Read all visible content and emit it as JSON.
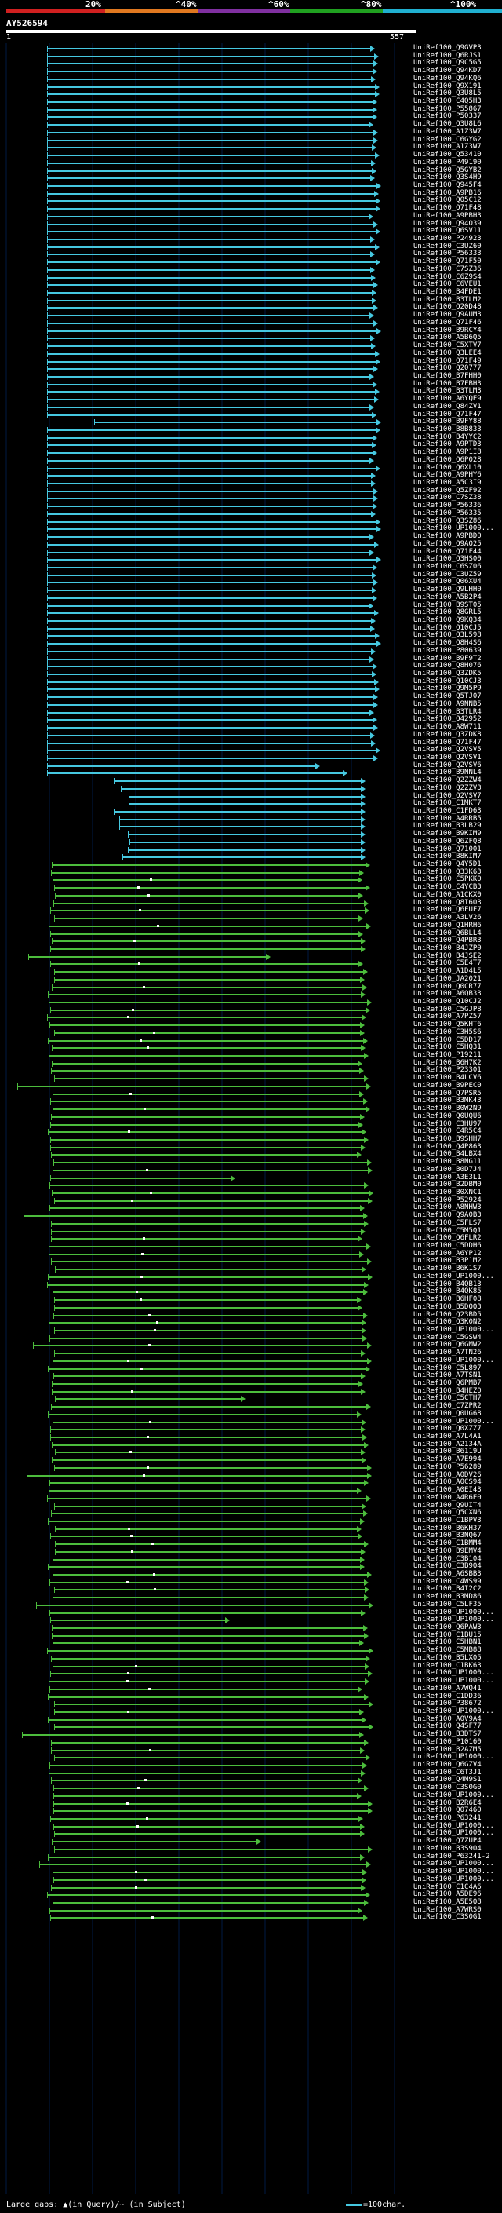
{
  "scale": {
    "labels": [
      "20%",
      "^40%",
      "^60%",
      "^80%",
      "^100%"
    ],
    "colors": [
      "#d02020",
      "#e07820",
      "#8030a0",
      "#20a020",
      "#20b0d0"
    ]
  },
  "query": {
    "id": "AY526594",
    "start": "1",
    "end": "557"
  },
  "colors": {
    "cyan": "#46c8e0",
    "green": "#4cbc3c",
    "grid": "#001a44"
  },
  "hits": [
    "UniRef100_Q9GVP3",
    "UniRef100_Q6RJS1",
    "UniRef100_Q9C5G5",
    "UniRef100_Q94KD7",
    "UniRef100_Q94KQ6",
    "UniRef100_Q9X191",
    "UniRef100_Q3U8L5",
    "UniRef100_C4Q5H3",
    "UniRef100_P55867",
    "UniRef100_P50337",
    "UniRef100_Q3U8L6",
    "UniRef100_A1Z3W7",
    "UniRef100_C6GYG2",
    "UniRef100_A1Z3W7",
    "UniRef100_Q53410",
    "UniRef100_P49190",
    "UniRef100_Q5GYB2",
    "UniRef100_Q3S4H9",
    "UniRef100_Q945F4",
    "UniRef100_A9PB16",
    "UniRef100_Q05C12",
    "UniRef100_Q71F48",
    "UniRef100_A9PBH3",
    "UniRef100_Q94O39",
    "UniRef100_Q6SV11",
    "UniRef100_P24923",
    "UniRef100_C3UZ60",
    "UniRef100_P56333",
    "UniRef100_Q71F50",
    "UniRef100_C7SZ36",
    "UniRef100_C6Z9S4",
    "UniRef100_C6VEU1",
    "UniRef100_B4FDE1",
    "UniRef100_B3TLM2",
    "UniRef100_Q20D48",
    "UniRef100_Q9AUM3",
    "UniRef100_Q71F46",
    "UniRef100_B9RCY4",
    "UniRef100_A5B6Q5",
    "UniRef100_C5XTV7",
    "UniRef100_Q3LEE4",
    "UniRef100_Q71F49",
    "UniRef100_Q20777",
    "UniRef100_B7FHH0",
    "UniRef100_B7FBH3",
    "UniRef100_B3TLM3",
    "UniRef100_A6YQE9",
    "UniRef100_Q84ZV1",
    "UniRef100_Q71F47",
    "UniRef100_B9FY88",
    "UniRef100_B8B833",
    "UniRef100_B4YYC2",
    "UniRef100_A9PTD3",
    "UniRef100_A9P1I8",
    "UniRef100_Q6P028",
    "UniRef100_Q6XL10",
    "UniRef100_A9PHY6",
    "UniRef100_A5C3I9",
    "UniRef100_Q5ZF92",
    "UniRef100_C7SZ38",
    "UniRef100_P56336",
    "UniRef100_P56335",
    "UniRef100_Q3SZ86",
    "UniRef100_UP1000...",
    "UniRef100_A9PBD0",
    "UniRef100_Q9AQ25",
    "UniRef100_Q71F44",
    "UniRef100_Q3HS00",
    "UniRef100_C6SZ06",
    "UniRef100_C3UZ59",
    "UniRef100_Q06XU4",
    "UniRef100_Q9LHH0",
    "UniRef100_A5B2P4",
    "UniRef100_B9ST05",
    "UniRef100_Q8GRL5",
    "UniRef100_Q9KQ34",
    "UniRef100_Q10CJ5",
    "UniRef100_Q3L598",
    "UniRef100_Q8H4S6",
    "UniRef100_P80639",
    "UniRef100_B9F9T2",
    "UniRef100_Q8H076",
    "UniRef100_Q3ZDK5",
    "UniRef100_Q10CJ3",
    "UniRef100_Q9M5P9",
    "UniRef100_Q5TJ07",
    "UniRef100_A9NNB5",
    "UniRef100_B3TLR4",
    "UniRef100_Q42952",
    "UniRef100_A8W711",
    "UniRef100_Q3ZDK8",
    "UniRef100_Q71F47",
    "UniRef100_Q2VSV5",
    "UniRef100_Q2VSV1",
    "UniRef100_Q2VSV6",
    "UniRef100_B9NNL4",
    "UniRef100_Q2ZZW4",
    "UniRef100_Q2ZZV3",
    "UniRef100_Q2VSV7",
    "UniRef100_C1MKT7",
    "UniRef100_C1FD63",
    "UniRef100_A4RRB5",
    "UniRef100_B3LB29",
    "UniRef100_B9KIM9",
    "UniRef100_Q6ZFQ8",
    "UniRef100_Q71001",
    "UniRef100_B8KIM7",
    "UniRef100_Q4Y5D1",
    "UniRef100_Q33K63",
    "UniRef100_C5PKK0",
    "UniRef100_C4YCB3",
    "UniRef100_A1CKX0",
    "UniRef100_Q8I6O3",
    "UniRef100_Q6FUF7",
    "UniRef100_A3LV26",
    "UniRef100_Q1HRH6",
    "UniRef100_Q6BLL4",
    "UniRef100_Q4PBR3",
    "UniRef100_B4JZP0",
    "UniRef100_B4JSE2",
    "UniRef100_C5E4T7",
    "UniRef100_A1D4L5",
    "UniRef100_JA2021",
    "UniRef100_Q0CR77",
    "UniRef100_A6QB33",
    "UniRef100_Q10CJ2",
    "UniRef100_C5GJP8",
    "UniRef100_A7PZ57",
    "UniRef100_Q5KHT6",
    "UniRef100_C3H5S6",
    "UniRef100_C5DD17",
    "UniRef100_C5HQ31",
    "UniRef100_P19211",
    "UniRef100_B6H7K2",
    "UniRef100_P23301",
    "UniRef100_B4LCV6",
    "UniRef100_B9PEC0",
    "UniRef100_Q7PSR5",
    "UniRef100_B3MK43",
    "UniRef100_B0W2N9",
    "UniRef100_Q0UQU6",
    "UniRef100_C3HU97",
    "UniRef100_C4R5C4",
    "UniRef100_B9SHH7",
    "UniRef100_Q4P863",
    "UniRef100_B4LBX4",
    "UniRef100_B8NG11",
    "UniRef100_B0D7J4",
    "UniRef100_A3E3L1",
    "UniRef100_B2DBM0",
    "UniRef100_B0XNC1",
    "UniRef100_P52924",
    "UniRef100_A8NHW3",
    "UniRef100_Q9A0B3",
    "UniRef100_C5FLS7",
    "UniRef100_C5M5Q1",
    "UniRef100_Q6FLR2",
    "UniRef100_C5DDH6",
    "UniRef100_A6YP12",
    "UniRef100_B3P1M2",
    "UniRef100_B6K1S7",
    "UniRef100_UP1000...",
    "UniRef100_B4QB13",
    "UniRef100_B4QK85",
    "UniRef100_B6HF08",
    "UniRef100_B5DQQ3",
    "UniRef100_Q23BD5",
    "UniRef100_Q3K0N2",
    "UniRef100_UP1000...",
    "UniRef100_C5GSW4",
    "UniRef100_Q6GMW2",
    "UniRef100_A7TN26",
    "UniRef100_UP1000...",
    "UniRef100_C5L897",
    "UniRef100_A7TSN1",
    "UniRef100_Q6PMB7",
    "UniRef100_B4HEZ0",
    "UniRef100_C5CTH7",
    "UniRef100_C7ZPR2",
    "UniRef100_Q0UG68",
    "UniRef100_UP1000...",
    "UniRef100_Q0XZZ7",
    "UniRef100_A7L4A1",
    "UniRef100_A2134A",
    "UniRef100_B6119U",
    "UniRef100_A7E994",
    "UniRef100_P56289",
    "UniRef100_A0DV26",
    "UniRef100_A0CS94",
    "UniRef100_A0EI43",
    "UniRef100_A4R6E0",
    "UniRef100_Q9UIT4",
    "UniRef100_Q5CXN6",
    "UniRef100_C1BPV3",
    "UniRef100_B6KH37",
    "UniRef100_B3NQ67",
    "UniRef100_C1BMM4",
    "UniRef100_B9EMV4",
    "UniRef100_C3B104",
    "UniRef100_C3B9Q4",
    "UniRef100_A6SBB3",
    "UniRef100_C4WS99",
    "UniRef100_B4I2C2",
    "UniRef100_B3MD86",
    "UniRef100_C5LF35",
    "UniRef100_UP1000...",
    "UniRef100_UP1000...",
    "UniRef100_Q6PAW3",
    "UniRef100_C1BU15",
    "UniRef100_C5HBN1",
    "UniRef100_C5MB88",
    "UniRef100_B5LX05",
    "UniRef100_C1BK63",
    "UniRef100_UP1000...",
    "UniRef100_UP1000...",
    "UniRef100_A7WQ41",
    "UniRef100_C1DD36",
    "UniRef100_P38672",
    "UniRef100_UP1000...",
    "UniRef100_A0V9A4",
    "UniRef100_Q4SF77",
    "UniRef100_B3DTS7",
    "UniRef100_P10160",
    "UniRef100_B2AZM5",
    "UniRef100_UP1000...",
    "UniRef100_Q6GZV4",
    "UniRef100_C6T3J1",
    "UniRef100_Q4M9S1",
    "UniRef100_C3S0G0",
    "UniRef100_UP1000...",
    "UniRef100_B2R6E4",
    "UniRef100_Q07460",
    "UniRef100_P63241",
    "UniRef100_UP1000...",
    "UniRef100_UP1000...",
    "UniRef100_Q7ZUP4",
    "UniRef100_B3S9O4",
    "UniRef100_P63241-2",
    "UniRef100_UP1000...",
    "UniRef100_UP1000...",
    "UniRef100_UP1000...",
    "UniRef100_C1C4A6",
    "UniRef100_A5DE96",
    "UniRef100_A5E5Q8",
    "UniRef100_A7WRS0",
    "UniRef100_C3S0G1"
  ],
  "footer": {
    "left": "Large gaps: ▲(in Query)/~ (in Subject)",
    "right": "=100char."
  }
}
